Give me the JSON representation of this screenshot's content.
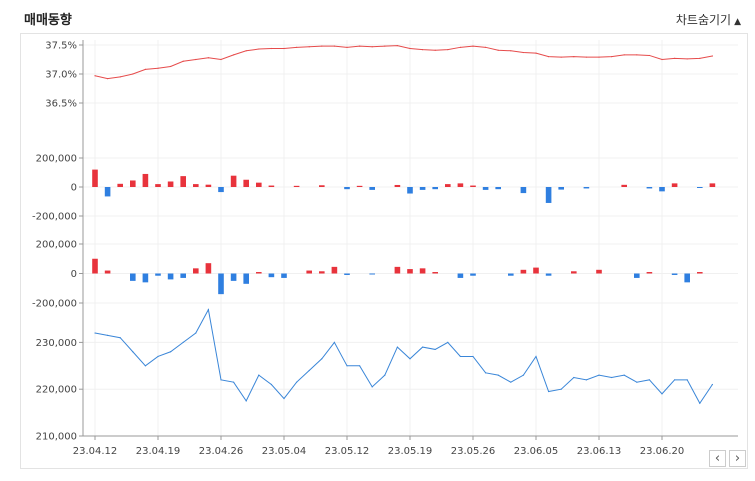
{
  "header": {
    "title": "매매동향",
    "toggle_label": "차트숨기기",
    "toggle_icon": "triangle-up-icon"
  },
  "nav": {
    "prev_label": "‹",
    "next_label": "›"
  },
  "colors": {
    "up": "#e8333c",
    "down": "#2f7fe0",
    "price_line": "#e64b4b",
    "close_line": "#3a86d8"
  },
  "chart_data": [
    {
      "type": "line",
      "panel": "top",
      "color": "#e64b4b",
      "ylim": [
        36.0,
        37.5
      ],
      "yticks": [
        "37.5%",
        "37.0%",
        "36.5%"
      ],
      "ytick_values": [
        37.5,
        37.0,
        36.5
      ],
      "values": [
        36.97,
        36.92,
        36.95,
        37.0,
        37.08,
        37.1,
        37.13,
        37.22,
        37.25,
        37.28,
        37.25,
        37.33,
        37.4,
        37.43,
        37.44,
        37.44,
        37.46,
        37.47,
        37.48,
        37.48,
        37.46,
        37.48,
        37.47,
        37.48,
        37.49,
        37.44,
        37.42,
        37.41,
        37.42,
        37.46,
        37.48,
        37.46,
        37.41,
        37.4,
        37.37,
        37.36,
        37.3,
        37.29,
        37.3,
        37.29,
        37.29,
        37.3,
        37.33,
        37.33,
        37.32,
        37.25,
        37.27,
        37.26,
        37.27,
        37.31
      ]
    },
    {
      "type": "bar",
      "panel": "middle-1",
      "ylim": [
        -200000,
        200000
      ],
      "yticks": [
        "200,000",
        "0",
        "-200,000"
      ],
      "ytick_values": [
        200000,
        0,
        -200000
      ],
      "values": [
        120000,
        -65000,
        22000,
        45000,
        90000,
        20000,
        38000,
        75000,
        20000,
        16000,
        -35000,
        78000,
        50000,
        30000,
        10000,
        0,
        8000,
        0,
        12000,
        0,
        -15000,
        8000,
        -20000,
        0,
        14000,
        -45000,
        -20000,
        -15000,
        20000,
        25000,
        10000,
        -20000,
        -15000,
        0,
        -42000,
        0,
        -110000,
        -18000,
        0,
        -10000,
        0,
        0,
        15000,
        0,
        -10000,
        -30000,
        25000,
        0,
        -5000,
        25000
      ]
    },
    {
      "type": "bar",
      "panel": "middle-2",
      "ylim": [
        -200000,
        200000
      ],
      "yticks": [
        "200,000",
        "0",
        "-200,000"
      ],
      "ytick_values": [
        200000,
        0,
        -200000
      ],
      "values": [
        100000,
        20000,
        0,
        -50000,
        -60000,
        -15000,
        -40000,
        -30000,
        35000,
        70000,
        -140000,
        -50000,
        -70000,
        10000,
        -25000,
        -30000,
        0,
        20000,
        15000,
        45000,
        -10000,
        0,
        -5000,
        0,
        45000,
        30000,
        35000,
        10000,
        0,
        -30000,
        -15000,
        0,
        0,
        -15000,
        25000,
        40000,
        -15000,
        0,
        15000,
        0,
        25000,
        0,
        0,
        -30000,
        10000,
        0,
        -10000,
        -60000,
        10000,
        0
      ]
    },
    {
      "type": "line",
      "panel": "bottom",
      "color": "#3a86d8",
      "xlabel_ticks": [
        "23.04.12",
        "23.04.19",
        "23.04.26",
        "23.05.04",
        "23.05.12",
        "23.05.19",
        "23.05.26",
        "23.06.05",
        "23.06.13",
        "23.06.20"
      ],
      "xtick_indices": [
        0,
        5,
        10,
        15,
        20,
        25,
        30,
        35,
        40,
        45
      ],
      "ylim": [
        210000,
        235000
      ],
      "yticks": [
        "230,000",
        "220,000",
        "210,000"
      ],
      "ytick_values": [
        230000,
        220000,
        210000
      ],
      "values": [
        232000,
        231500,
        231000,
        228000,
        225000,
        227000,
        228000,
        230000,
        232000,
        237000,
        222000,
        221500,
        217500,
        223000,
        221000,
        218000,
        221500,
        224000,
        226500,
        230000,
        225000,
        225000,
        220500,
        223000,
        229000,
        226500,
        229000,
        228500,
        230000,
        227000,
        227000,
        223500,
        223000,
        221500,
        223000,
        227000,
        219500,
        220000,
        222500,
        222000,
        223000,
        222500,
        223000,
        221500,
        222000,
        219000,
        222000,
        222000,
        217000,
        221000
      ]
    }
  ]
}
